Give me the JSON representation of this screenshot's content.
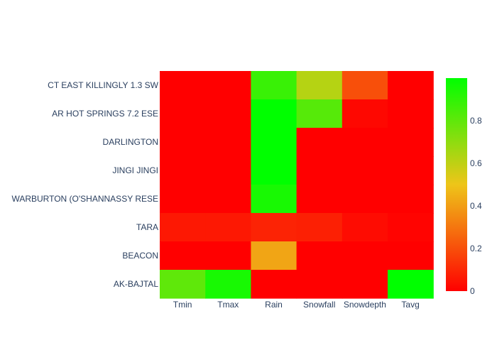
{
  "chart_data": {
    "type": "heatmap",
    "x": [
      "Tmin",
      "Tmax",
      "Rain",
      "Snowfall",
      "Snowdepth",
      "Tavg"
    ],
    "y": [
      "CT EAST KILLINGLY 1.3 SW",
      "AR HOT SPRINGS 7.2 ESE",
      "DARLINGTON",
      "JINGI JINGI",
      "WARBURTON (O'SHANNASSY RESE",
      "TARA",
      "BEACON",
      "AK-BAJTAL"
    ],
    "z": [
      [
        0.0,
        0.0,
        0.88,
        0.62,
        0.2,
        0.0
      ],
      [
        0.0,
        0.0,
        1.0,
        0.82,
        0.02,
        0.0
      ],
      [
        0.0,
        0.0,
        1.0,
        0.0,
        0.0,
        0.0
      ],
      [
        0.0,
        0.0,
        1.0,
        0.0,
        0.0,
        0.0
      ],
      [
        0.0,
        0.0,
        0.95,
        0.0,
        0.0,
        0.0
      ],
      [
        0.06,
        0.06,
        0.09,
        0.08,
        0.03,
        0.01
      ],
      [
        0.0,
        0.0,
        0.42,
        0.0,
        0.0,
        0.0
      ],
      [
        0.8,
        0.95,
        0.0,
        0.0,
        0.0,
        1.0
      ]
    ],
    "colorscale": [
      [
        0,
        "#ff0000"
      ],
      [
        0.5,
        "#eec519"
      ],
      [
        1,
        "#00ff00"
      ]
    ],
    "colorbar": {
      "range": [
        0,
        1
      ],
      "ticks": [
        "0",
        "0.2",
        "0.4",
        "0.6",
        "0.8"
      ],
      "tickvals": [
        0,
        0.2,
        0.4,
        0.6,
        0.8
      ]
    }
  }
}
